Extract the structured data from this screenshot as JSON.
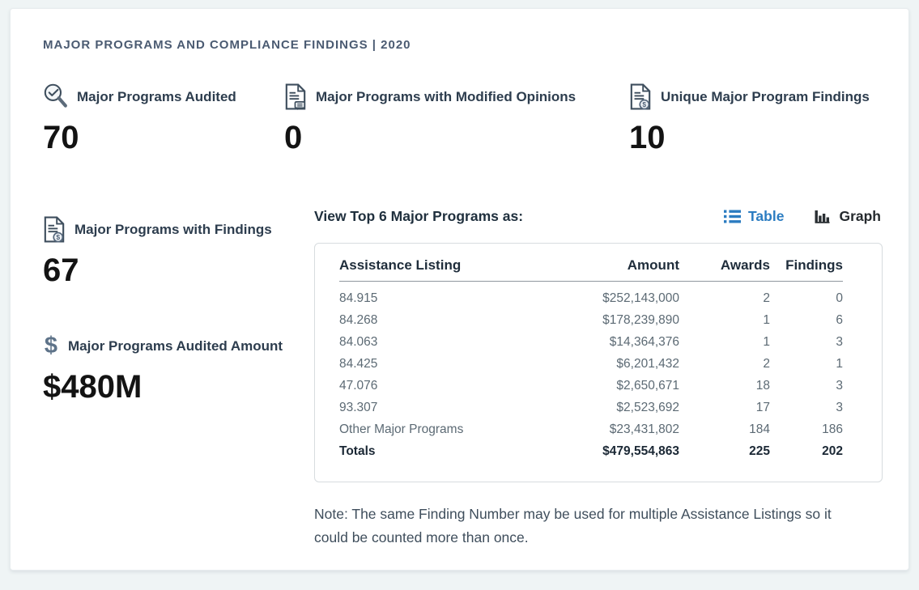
{
  "header": {
    "title": "MAJOR PROGRAMS AND COMPLIANCE FINDINGS | 2020"
  },
  "stats": [
    {
      "id": "major-programs-audited",
      "label": "Major Programs Audited",
      "value": "70",
      "icon": "magnifier-check-icon"
    },
    {
      "id": "major-programs-modified-opinions",
      "label": "Major Programs with Modified Opinions",
      "value": "0",
      "icon": "document-comment-icon"
    },
    {
      "id": "unique-major-program-findings",
      "label": "Unique Major Program Findings",
      "value": "10",
      "icon": "document-badge-icon"
    },
    {
      "id": "major-programs-with-findings",
      "label": "Major Programs with Findings",
      "value": "67",
      "icon": "document-badge-icon"
    },
    {
      "id": "major-programs-audited-amount",
      "label": "Major Programs Audited Amount",
      "value": "$480M",
      "icon": "dollar-icon"
    }
  ],
  "programs_section": {
    "heading": "View Top 6 Major Programs as:",
    "toggle": {
      "table_label": "Table",
      "graph_label": "Graph",
      "active": "Table"
    },
    "table": {
      "columns": [
        "Assistance Listing",
        "Amount",
        "Awards",
        "Findings"
      ],
      "rows": [
        [
          "84.915",
          "$252,143,000",
          "2",
          "0"
        ],
        [
          "84.268",
          "$178,239,890",
          "1",
          "6"
        ],
        [
          "84.063",
          "$14,364,376",
          "1",
          "3"
        ],
        [
          "84.425",
          "$6,201,432",
          "2",
          "1"
        ],
        [
          "47.076",
          "$2,650,671",
          "18",
          "3"
        ],
        [
          "93.307",
          "$2,523,692",
          "17",
          "3"
        ],
        [
          "Other Major Programs",
          "$23,431,802",
          "184",
          "186"
        ]
      ],
      "totals": [
        "Totals",
        "$479,554,863",
        "225",
        "202"
      ]
    },
    "note": "Note: The same Finding Number may be used for multiple Assistance Listings so it could be counted more than once."
  },
  "colors": {
    "accent_blue": "#2b7cc1",
    "title_text": "#4b5b72",
    "stat_label_text": "#2d3d4e",
    "stat_value_text": "#131313",
    "table_row_text": "#5c6a74",
    "note_text": "#3f4e5c",
    "page_background": "#eff4f5"
  }
}
